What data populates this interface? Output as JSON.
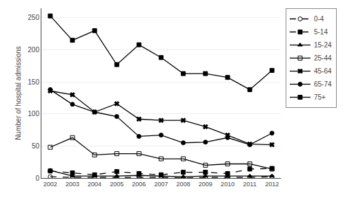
{
  "chart_data": {
    "type": "line",
    "y_label": "Number of hospital admissions",
    "x": [
      2002,
      2003,
      2004,
      2005,
      2006,
      2007,
      2008,
      2009,
      2010,
      2011,
      2012
    ],
    "series": [
      {
        "name": "0-4",
        "color": "#000000",
        "marker": "circle-open",
        "line_style": "dash",
        "values": [
          2,
          1,
          1,
          1,
          1,
          1,
          0,
          1,
          1,
          1,
          2
        ]
      },
      {
        "name": "5-14",
        "color": "#000000",
        "marker": "square",
        "line_style": "dash",
        "values": [
          11,
          8,
          5,
          10,
          7,
          5,
          9,
          9,
          7,
          14,
          15
        ]
      },
      {
        "name": "15-24",
        "color": "#000000",
        "marker": "triangle-up",
        "line_style": "solid",
        "values": [
          12,
          3,
          3,
          3,
          4,
          3,
          2,
          3,
          3,
          3,
          3
        ]
      },
      {
        "name": "25-44",
        "color": "#000000",
        "marker": "square-open",
        "line_style": "solid",
        "values": [
          48,
          63,
          36,
          38,
          38,
          30,
          30,
          20,
          22,
          22,
          14
        ]
      },
      {
        "name": "45-64",
        "color": "#000000",
        "marker": "x",
        "line_style": "solid",
        "values": [
          136,
          130,
          103,
          116,
          92,
          90,
          90,
          80,
          67,
          53,
          52
        ]
      },
      {
        "name": "65-74",
        "color": "#000000",
        "marker": "circle",
        "line_style": "solid",
        "values": [
          138,
          115,
          103,
          96,
          65,
          67,
          55,
          56,
          63,
          52,
          70
        ]
      },
      {
        "name": "75+",
        "color": "#000000",
        "marker": "square",
        "line_style": "solid",
        "values": [
          253,
          215,
          230,
          177,
          208,
          188,
          163,
          163,
          157,
          138,
          168
        ]
      }
    ],
    "xlim": [
      2001.6,
      2012.4
    ],
    "xticks": [
      2002,
      2003,
      2004,
      2005,
      2006,
      2007,
      2008,
      2009,
      2010,
      2011,
      2012
    ],
    "ylim": [
      0,
      265
    ],
    "yticks": [
      0,
      50,
      100,
      150,
      200,
      250
    ],
    "grid": "y",
    "legend": "right"
  }
}
